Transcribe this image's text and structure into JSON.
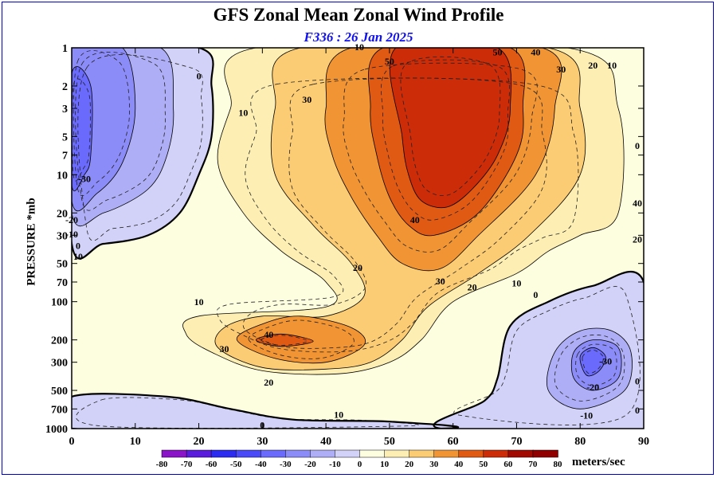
{
  "title": "GFS Zonal Mean Zonal Wind Profile",
  "subtitle": "F336 : 26 Jan 2025",
  "colors": {
    "frame": "#0000cc",
    "subtitle": "#1010ee"
  },
  "chart_data": {
    "type": "heatmap",
    "title": "GFS Zonal Mean Zonal Wind Profile",
    "subtitle": "F336 : 26 Jan 2025",
    "ylabel": "PRESSURE *mb",
    "xlim": [
      0,
      90
    ],
    "x_ticks": [
      0,
      10,
      20,
      30,
      40,
      50,
      60,
      70,
      80,
      90
    ],
    "y_scale": "log",
    "ylim": [
      1000,
      1
    ],
    "y_ticks": [
      1,
      2,
      3,
      5,
      7,
      10,
      20,
      30,
      50,
      70,
      100,
      200,
      300,
      500,
      700,
      1000
    ],
    "y_tick_labels": [
      "1",
      "2",
      "3",
      "5",
      "7",
      "10",
      "20",
      "30",
      "50",
      "70",
      "100",
      "200",
      "300",
      "500",
      "700",
      "1000"
    ],
    "colorbar": {
      "levels": [
        -80,
        -70,
        -60,
        -50,
        -40,
        -30,
        -20,
        -10,
        0,
        10,
        20,
        30,
        40,
        50,
        60,
        70,
        80
      ],
      "colors": [
        "#8a14c8",
        "#5a1cdc",
        "#2c2cf0",
        "#4a4af8",
        "#6a6afc",
        "#8c8cf8",
        "#aeaef6",
        "#d2d2f8",
        "#fdfde0",
        "#fdefb4",
        "#fccc74",
        "#f09434",
        "#e05a14",
        "#cc2c08",
        "#a00a00",
        "#900000"
      ],
      "unit": "meters/sec"
    },
    "fields": [
      {
        "name": "easterly-high",
        "points": [
          [
            0,
            1
          ],
          [
            20,
            1
          ],
          [
            22,
            2
          ],
          [
            22,
            5
          ],
          [
            20,
            10
          ],
          [
            17,
            20
          ],
          [
            12,
            30
          ],
          [
            5,
            35
          ],
          [
            0,
            35
          ]
        ],
        "fill_index": 7
      },
      {
        "name": "easterly-high-inner",
        "points": [
          [
            0,
            1
          ],
          [
            14,
            1
          ],
          [
            16,
            3
          ],
          [
            15,
            7
          ],
          [
            12,
            13
          ],
          [
            5,
            20
          ],
          [
            0,
            20
          ]
        ],
        "fill_index": 6
      },
      {
        "name": "easterly-high-core",
        "points": [
          [
            0,
            1
          ],
          [
            8,
            1
          ],
          [
            10,
            3
          ],
          [
            8,
            8
          ],
          [
            4,
            14
          ],
          [
            0,
            16
          ]
        ],
        "fill_index": 5
      },
      {
        "name": "easterly-high-min",
        "points": [
          [
            0,
            1.6
          ],
          [
            3,
            2
          ],
          [
            3,
            7
          ],
          [
            2,
            10
          ],
          [
            0,
            12
          ]
        ],
        "fill_index": 4
      },
      {
        "name": "warm-strat",
        "points": [
          [
            29,
            1
          ],
          [
            78,
            1
          ],
          [
            86,
            3
          ],
          [
            86,
            20
          ],
          [
            80,
            30
          ],
          [
            75,
            40
          ],
          [
            70,
            60
          ],
          [
            60,
            100
          ],
          [
            55,
            200
          ],
          [
            50,
            300
          ],
          [
            42,
            370
          ],
          [
            30,
            350
          ],
          [
            22,
            250
          ],
          [
            18,
            180
          ],
          [
            20,
            130
          ],
          [
            40,
            110
          ],
          [
            40,
            70
          ],
          [
            33,
            40
          ],
          [
            27,
            20
          ],
          [
            23,
            8
          ],
          [
            25,
            3
          ]
        ],
        "fill_index": 9
      },
      {
        "name": "warm-20",
        "points": [
          [
            36,
            1
          ],
          [
            75,
            1
          ],
          [
            80,
            3
          ],
          [
            80,
            10
          ],
          [
            72,
            30
          ],
          [
            64,
            60
          ],
          [
            56,
            110
          ],
          [
            52,
            200
          ],
          [
            47,
            300
          ],
          [
            40,
            340
          ],
          [
            30,
            330
          ],
          [
            23,
            230
          ],
          [
            24,
            160
          ],
          [
            30,
            130
          ],
          [
            40,
            130
          ],
          [
            46,
            90
          ],
          [
            44,
            50
          ],
          [
            38,
            25
          ],
          [
            32,
            10
          ],
          [
            32,
            3
          ]
        ],
        "fill_index": 10
      },
      {
        "name": "warm-30",
        "points": [
          [
            44,
            1
          ],
          [
            74,
            1
          ],
          [
            76,
            3
          ],
          [
            73,
            10
          ],
          [
            64,
            30
          ],
          [
            58,
            55
          ],
          [
            52,
            50
          ],
          [
            48,
            30
          ],
          [
            44,
            15
          ],
          [
            41,
            7
          ],
          [
            40,
            3
          ]
        ],
        "fill_index": 11
      },
      {
        "name": "warm-30-lower",
        "points": [
          [
            26,
            200
          ],
          [
            30,
            150
          ],
          [
            36,
            130
          ],
          [
            44,
            160
          ],
          [
            46,
            220
          ],
          [
            40,
            300
          ],
          [
            32,
            280
          ]
        ],
        "fill_index": 11
      },
      {
        "name": "warm-40",
        "points": [
          [
            49,
            1
          ],
          [
            69,
            1
          ],
          [
            71,
            3
          ],
          [
            70,
            7
          ],
          [
            64,
            20
          ],
          [
            57,
            30
          ],
          [
            53,
            25
          ],
          [
            50,
            15
          ],
          [
            48,
            7
          ],
          [
            47,
            3
          ]
        ],
        "fill_index": 12
      },
      {
        "name": "warm-40-lower",
        "points": [
          [
            29,
            200
          ],
          [
            33,
            180
          ],
          [
            38,
            205
          ],
          [
            33,
            225
          ]
        ],
        "fill_index": 12
      },
      {
        "name": "warm-50",
        "points": [
          [
            51,
            1
          ],
          [
            67,
            1
          ],
          [
            69,
            3
          ],
          [
            67,
            7
          ],
          [
            63,
            13
          ],
          [
            59,
            18
          ],
          [
            55,
            16
          ],
          [
            53,
            10
          ],
          [
            52,
            5
          ]
        ],
        "fill_index": 13
      },
      {
        "name": "easterly-low",
        "points": [
          [
            69,
            155
          ],
          [
            75,
            100
          ],
          [
            82,
            75
          ],
          [
            90,
            70
          ],
          [
            90,
            1000
          ],
          [
            58,
            1000
          ],
          [
            65,
            600
          ],
          [
            67,
            400
          ]
        ],
        "fill_index": 7
      },
      {
        "name": "easterly-low-inner",
        "points": [
          [
            76,
            250
          ],
          [
            80,
            170
          ],
          [
            85,
            170
          ],
          [
            88,
            250
          ],
          [
            87,
            500
          ],
          [
            80,
            700
          ],
          [
            75,
            500
          ]
        ],
        "fill_index": 6
      },
      {
        "name": "easterly-low-core",
        "points": [
          [
            79,
            250
          ],
          [
            82,
            200
          ],
          [
            86,
            230
          ],
          [
            86,
            400
          ],
          [
            82,
            500
          ],
          [
            79,
            400
          ]
        ],
        "fill_index": 5
      },
      {
        "name": "easterly-low-min",
        "points": [
          [
            80,
            270
          ],
          [
            82,
            230
          ],
          [
            84,
            270
          ],
          [
            83,
            350
          ],
          [
            81,
            380
          ]
        ],
        "fill_index": 4
      },
      {
        "name": "surface-easterly",
        "points": [
          [
            0,
            560
          ],
          [
            15,
            560
          ],
          [
            25,
            700
          ],
          [
            35,
            850
          ],
          [
            50,
            880
          ],
          [
            58,
            1000
          ],
          [
            0,
            1000
          ]
        ],
        "fill_index": 7
      }
    ],
    "contour_labels": [
      {
        "text": "-10",
        "x": 45,
        "y": 1
      },
      {
        "text": "50",
        "x": 50,
        "y": 1.3
      },
      {
        "text": "50",
        "x": 67,
        "y": 1.1
      },
      {
        "text": "40",
        "x": 73,
        "y": 1.1
      },
      {
        "text": "30",
        "x": 77,
        "y": 1.5
      },
      {
        "text": "20",
        "x": 82,
        "y": 1.4
      },
      {
        "text": "10",
        "x": 85,
        "y": 1.4
      },
      {
        "text": "0",
        "x": 20,
        "y": 1.7
      },
      {
        "text": "30",
        "x": 37,
        "y": 2.6
      },
      {
        "text": "10",
        "x": 27,
        "y": 3.3
      },
      {
        "text": "-30",
        "x": 2,
        "y": 11
      },
      {
        "text": "0",
        "x": 89,
        "y": 6
      },
      {
        "text": "40",
        "x": 89,
        "y": 17
      },
      {
        "text": "20",
        "x": 89,
        "y": 33
      },
      {
        "text": "40",
        "x": 54,
        "y": 23
      },
      {
        "text": "-20",
        "x": 0,
        "y": 23
      },
      {
        "text": "-10",
        "x": 0,
        "y": 30
      },
      {
        "text": "0",
        "x": 1,
        "y": 37
      },
      {
        "text": "10",
        "x": 1,
        "y": 45
      },
      {
        "text": "20",
        "x": 45,
        "y": 55
      },
      {
        "text": "30",
        "x": 58,
        "y": 70
      },
      {
        "text": "20",
        "x": 63,
        "y": 78
      },
      {
        "text": "10",
        "x": 70,
        "y": 73
      },
      {
        "text": "0",
        "x": 73,
        "y": 90
      },
      {
        "text": "10",
        "x": 20,
        "y": 102
      },
      {
        "text": "40",
        "x": 31,
        "y": 185
      },
      {
        "text": "30",
        "x": 24,
        "y": 240
      },
      {
        "text": "-30",
        "x": 84,
        "y": 300
      },
      {
        "text": "0",
        "x": 89,
        "y": 430
      },
      {
        "text": "20",
        "x": 31,
        "y": 440
      },
      {
        "text": "-20",
        "x": 82,
        "y": 480
      },
      {
        "text": "10",
        "x": 42,
        "y": 790
      },
      {
        "text": "-10",
        "x": 81,
        "y": 800
      },
      {
        "text": "0",
        "x": 89,
        "y": 730
      },
      {
        "text": "0",
        "x": 30,
        "y": 950
      }
    ]
  }
}
